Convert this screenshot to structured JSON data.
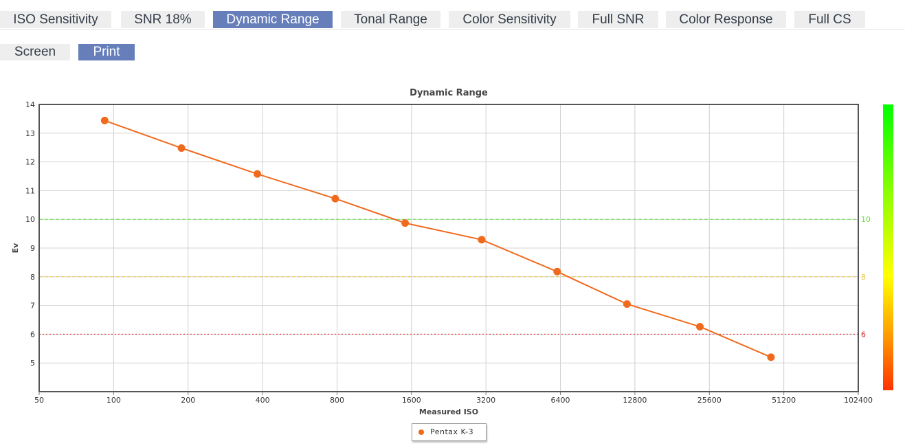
{
  "tabs": [
    {
      "label": "ISO Sensitivity",
      "active": false
    },
    {
      "label": "SNR 18%",
      "active": false
    },
    {
      "label": "Dynamic Range",
      "active": true
    },
    {
      "label": "Tonal Range",
      "active": false
    },
    {
      "label": "Color Sensitivity",
      "active": false
    },
    {
      "label": "Full SNR",
      "active": false
    },
    {
      "label": "Color Response",
      "active": false
    },
    {
      "label": "Full CS",
      "active": false
    }
  ],
  "view_tabs": [
    {
      "label": "Screen",
      "active": false
    },
    {
      "label": "Print",
      "active": true
    }
  ],
  "chart_data": {
    "type": "line",
    "title": "Dynamic Range",
    "xlabel": "Measured ISO",
    "ylabel": "Ev",
    "x_scale": "log2",
    "x_ticks": [
      "50",
      "100",
      "200",
      "400",
      "800",
      "1600",
      "3200",
      "6400",
      "12800",
      "25600",
      "51200",
      "102400"
    ],
    "y_ticks": [
      "5",
      "6",
      "7",
      "8",
      "9",
      "10",
      "11",
      "12",
      "13",
      "14"
    ],
    "xlim": [
      50,
      102400
    ],
    "ylim": [
      4,
      14
    ],
    "grid": true,
    "series": [
      {
        "name": "Pentax K-3",
        "color": "#f06a1e",
        "x": [
          92,
          188,
          381,
          787,
          1508,
          3075,
          6210,
          11893,
          23450,
          45430
        ],
        "y": [
          13.44,
          12.48,
          11.58,
          10.72,
          9.87,
          9.29,
          8.18,
          7.05,
          6.26,
          5.2
        ]
      }
    ],
    "reference_lines": [
      {
        "y": 10,
        "label": "10",
        "color": "#66dd44",
        "style": "dashed"
      },
      {
        "y": 8,
        "label": "8",
        "color": "#e6c64a",
        "style": "dashed"
      },
      {
        "y": 6,
        "label": "6",
        "color": "#dd2222",
        "style": "dotted"
      }
    ],
    "legend_position": "bottom-center",
    "colorbar": "right, green top to red bottom"
  }
}
